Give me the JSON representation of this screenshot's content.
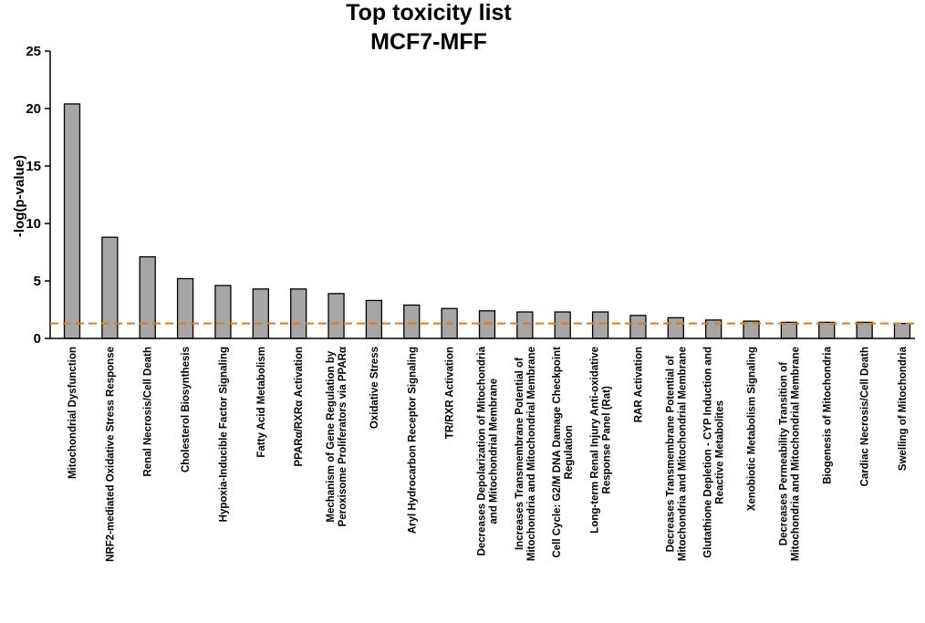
{
  "chart_data": {
    "type": "bar",
    "title_lines": [
      "Top toxicity list",
      "MCF7-MFF"
    ],
    "xlabel": "",
    "ylabel": "-log(p-value)",
    "ylim": [
      0,
      25
    ],
    "yticks": [
      0,
      5,
      10,
      15,
      20,
      25
    ],
    "grid": false,
    "threshold": 1.3,
    "threshold_color": "#e07a1f",
    "bar_color": "#a6a6a6",
    "categories": [
      [
        "Mitochondrial Dysfunction"
      ],
      [
        "NRF2-mediated Oxidative Stress Response"
      ],
      [
        "Renal Necrosis/Cell Death"
      ],
      [
        "Cholesterol Biosynthesis"
      ],
      [
        "Hypoxia-Inducible Factor Signaling"
      ],
      [
        "Fatty Acid Metabolism"
      ],
      [
        "PPARα/RXRα Activation"
      ],
      [
        "Mechanism of Gene Regulation by",
        "Peroxisome Proliferators via PPARα"
      ],
      [
        "Oxidative Stress"
      ],
      [
        "Aryl Hydrocarbon Receptor Signaling"
      ],
      [
        "TR/RXR Activation"
      ],
      [
        "Decreases Depolarization of Mitochondria",
        "and Mitochondrial Membrane"
      ],
      [
        "Increases Transmembrane Potential of",
        "Mitochondria and Mitochondrial Membrane"
      ],
      [
        "Cell Cycle: G2/M DNA Damage Checkpoint",
        "Regulation"
      ],
      [
        "Long-term Renal Injury Anti-oxidative",
        "Response Panel (Rat)"
      ],
      [
        "RAR Activation"
      ],
      [
        "Decreases Transmembrane Potential of",
        "Mitochondria and Mitochondrial Membrane"
      ],
      [
        "Glutathione Depletion - CYP Induction and",
        "Reactive Metabolites"
      ],
      [
        "Xenobiotic Metabolism Signaling"
      ],
      [
        "Decreases Permeability Transition of",
        "Mitochondria and Mitochondrial Membrane"
      ],
      [
        "Biogenesis of Mitochondria"
      ],
      [
        "Cardiac Necrosis/Cell Death"
      ],
      [
        "Swelling of Mitochondria"
      ]
    ],
    "values": [
      20.4,
      8.8,
      7.1,
      5.2,
      4.6,
      4.3,
      4.3,
      3.9,
      3.3,
      2.9,
      2.6,
      2.4,
      2.3,
      2.3,
      2.3,
      2.0,
      1.8,
      1.6,
      1.5,
      1.4,
      1.4,
      1.4,
      1.3
    ]
  }
}
